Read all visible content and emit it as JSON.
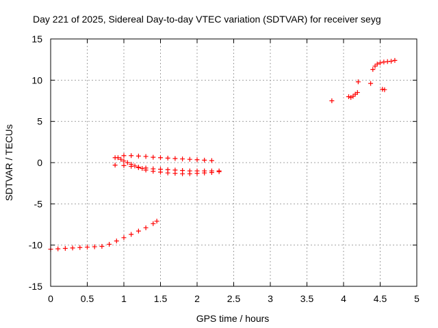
{
  "chart_data": {
    "type": "scatter",
    "title": "Day 221 of 2025, Sidereal Day-to-day VTEC variation (SDTVAR) for receiver seyg",
    "xlabel": "GPS time / hours",
    "ylabel": "SDTVAR / TECUs",
    "xlim": [
      0,
      5
    ],
    "ylim": [
      -15,
      15
    ],
    "x_ticks": [
      0,
      0.5,
      1,
      1.5,
      2,
      2.5,
      3,
      3.5,
      4,
      4.5,
      5
    ],
    "x_tick_labels": [
      "0",
      "0.5",
      "1",
      "1.5",
      "2",
      "2.5",
      "3",
      "3.5",
      "4",
      "4.5",
      "5"
    ],
    "y_ticks": [
      -15,
      -10,
      -5,
      0,
      5,
      10,
      15
    ],
    "y_tick_labels": [
      "-15",
      "-10",
      "-5",
      "0",
      "5",
      "10",
      "15"
    ],
    "grid": true,
    "marker": "+",
    "color": "#ff0000",
    "series": [
      {
        "name": "segment-1",
        "points": [
          [
            0.0,
            -10.5
          ],
          [
            0.1,
            -10.45
          ],
          [
            0.2,
            -10.4
          ],
          [
            0.3,
            -10.35
          ],
          [
            0.4,
            -10.3
          ],
          [
            0.5,
            -10.25
          ],
          [
            0.6,
            -10.2
          ],
          [
            0.7,
            -10.15
          ],
          [
            0.8,
            -9.9
          ],
          [
            0.9,
            -9.5
          ],
          [
            1.0,
            -9.1
          ],
          [
            1.1,
            -8.7
          ],
          [
            1.2,
            -8.3
          ],
          [
            1.3,
            -7.9
          ],
          [
            1.4,
            -7.4
          ],
          [
            1.45,
            -7.1
          ]
        ]
      },
      {
        "name": "segment-2",
        "points": [
          [
            0.88,
            0.6
          ],
          [
            0.92,
            0.6
          ],
          [
            0.96,
            0.4
          ],
          [
            1.0,
            0.2
          ],
          [
            1.05,
            0.0
          ],
          [
            1.1,
            -0.2
          ],
          [
            1.15,
            -0.4
          ],
          [
            1.2,
            -0.6
          ],
          [
            1.25,
            -0.7
          ],
          [
            1.3,
            -0.9
          ],
          [
            1.4,
            -1.05
          ],
          [
            1.5,
            -1.15
          ],
          [
            1.6,
            -1.25
          ],
          [
            1.7,
            -1.3
          ],
          [
            1.8,
            -1.35
          ],
          [
            1.9,
            -1.35
          ],
          [
            2.0,
            -1.3
          ],
          [
            2.1,
            -1.25
          ],
          [
            2.2,
            -1.2
          ],
          [
            2.3,
            -1.1
          ]
        ]
      },
      {
        "name": "segment-3",
        "points": [
          [
            0.88,
            -0.3
          ],
          [
            1.0,
            -0.35
          ],
          [
            1.1,
            -0.45
          ],
          [
            1.2,
            -0.55
          ],
          [
            1.3,
            -0.65
          ],
          [
            1.4,
            -0.75
          ],
          [
            1.5,
            -0.8
          ],
          [
            1.6,
            -0.85
          ],
          [
            1.7,
            -0.9
          ],
          [
            1.8,
            -0.95
          ],
          [
            1.9,
            -1.0
          ],
          [
            2.0,
            -1.0
          ],
          [
            2.1,
            -1.0
          ],
          [
            2.2,
            -1.0
          ],
          [
            2.3,
            -1.0
          ]
        ]
      },
      {
        "name": "segment-4",
        "points": [
          [
            1.0,
            0.85
          ],
          [
            1.1,
            0.85
          ],
          [
            1.2,
            0.8
          ],
          [
            1.3,
            0.75
          ],
          [
            1.4,
            0.65
          ],
          [
            1.5,
            0.6
          ],
          [
            1.6,
            0.55
          ],
          [
            1.7,
            0.5
          ],
          [
            1.8,
            0.45
          ],
          [
            1.9,
            0.4
          ],
          [
            2.0,
            0.35
          ],
          [
            2.1,
            0.3
          ],
          [
            2.2,
            0.25
          ]
        ]
      },
      {
        "name": "segment-5",
        "points": [
          [
            3.84,
            7.5
          ],
          [
            4.07,
            8.0
          ],
          [
            4.1,
            7.9
          ],
          [
            4.13,
            8.05
          ],
          [
            4.16,
            8.3
          ],
          [
            4.19,
            8.5
          ],
          [
            4.2,
            9.8
          ],
          [
            4.37,
            9.6
          ],
          [
            4.4,
            11.3
          ],
          [
            4.43,
            11.7
          ],
          [
            4.46,
            11.95
          ],
          [
            4.5,
            12.1
          ],
          [
            4.55,
            12.2
          ],
          [
            4.6,
            12.25
          ],
          [
            4.65,
            12.3
          ],
          [
            4.7,
            12.4
          ],
          [
            4.53,
            8.9
          ],
          [
            4.56,
            8.85
          ]
        ]
      }
    ]
  }
}
